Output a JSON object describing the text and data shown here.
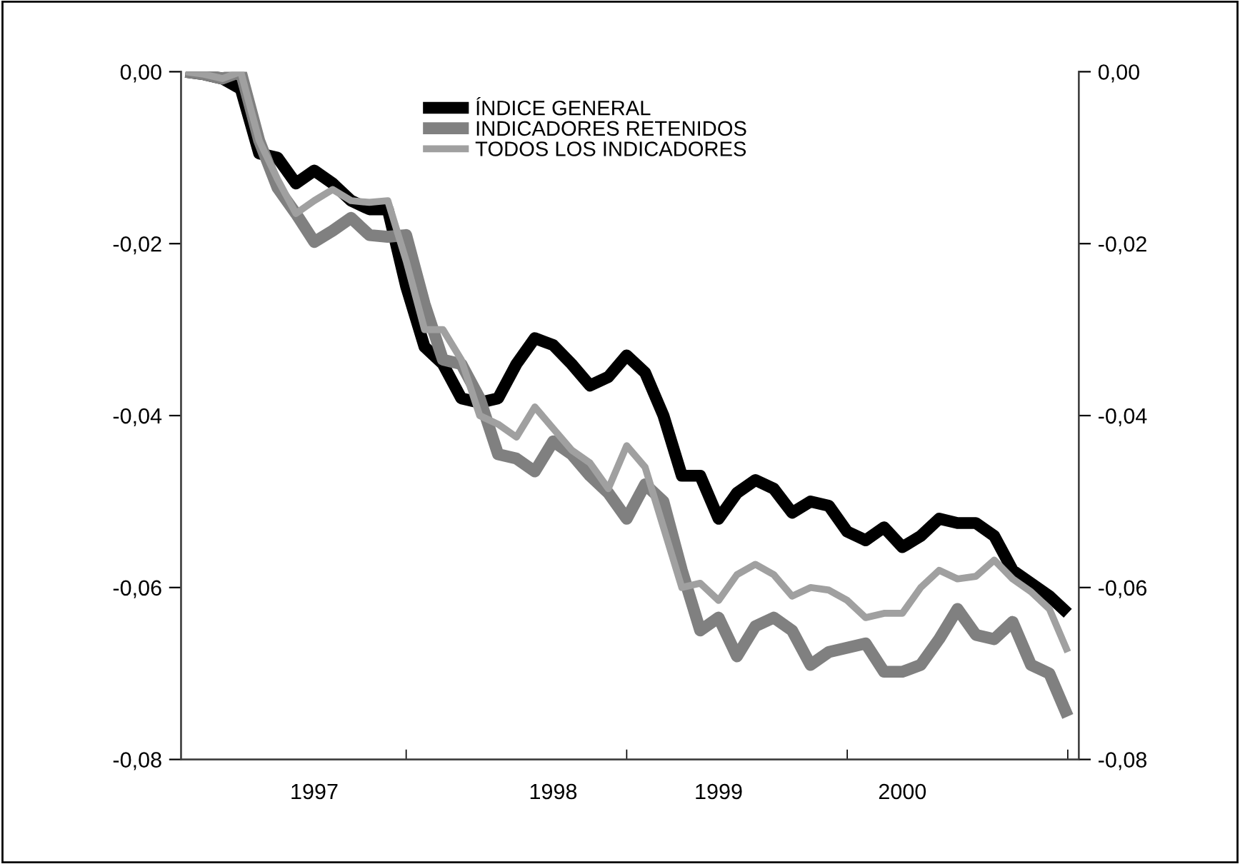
{
  "chart_data": {
    "type": "line",
    "categories": [
      null,
      null,
      null,
      null,
      null,
      null,
      null,
      "1997",
      null,
      null,
      null,
      null,
      null,
      null,
      null,
      null,
      null,
      null,
      null,
      null,
      "1998",
      null,
      null,
      null,
      null,
      null,
      null,
      null,
      null,
      "1999",
      null,
      null,
      null,
      null,
      null,
      null,
      null,
      null,
      null,
      "2000",
      null,
      null,
      null,
      null,
      null,
      null,
      null,
      null,
      null
    ],
    "series": [
      {
        "name": "ÍNDICE GENERAL",
        "color": "#000000",
        "values": [
          0,
          -0.0003,
          -0.0008,
          -0.002,
          -0.0095,
          -0.01,
          -0.013,
          -0.0115,
          -0.013,
          -0.015,
          -0.016,
          -0.016,
          -0.025,
          -0.032,
          -0.034,
          -0.038,
          -0.0385,
          -0.038,
          -0.034,
          -0.031,
          -0.0318,
          -0.034,
          -0.0365,
          -0.0355,
          -0.033,
          -0.035,
          -0.04,
          -0.047,
          -0.047,
          -0.052,
          -0.049,
          -0.0475,
          -0.0485,
          -0.0513,
          -0.05,
          -0.0505,
          -0.0535,
          -0.0545,
          -0.053,
          -0.0553,
          -0.054,
          -0.052,
          -0.0525,
          -0.0525,
          -0.054,
          -0.058,
          -0.0595,
          -0.061,
          -0.063
        ]
      },
      {
        "name": "INDICADORES RETENIDOS",
        "color": "#808080",
        "values": [
          0,
          -0.0003,
          -0.0008,
          0,
          -0.008,
          -0.0135,
          -0.0165,
          -0.0198,
          -0.0185,
          -0.017,
          -0.019,
          -0.0192,
          -0.019,
          -0.027,
          -0.0335,
          -0.034,
          -0.038,
          -0.0445,
          -0.045,
          -0.0465,
          -0.043,
          -0.0445,
          -0.047,
          -0.049,
          -0.052,
          -0.048,
          -0.05,
          -0.058,
          -0.065,
          -0.0635,
          -0.068,
          -0.0645,
          -0.0635,
          -0.065,
          -0.069,
          -0.0675,
          -0.067,
          -0.0665,
          -0.0698,
          -0.0698,
          -0.069,
          -0.066,
          -0.0625,
          -0.0655,
          -0.066,
          -0.064,
          -0.069,
          -0.07,
          -0.075
        ]
      },
      {
        "name": "TODOS LOS INDICADORES",
        "color": "#a0a0a0",
        "values": [
          0,
          -0.0003,
          -0.0008,
          0,
          -0.008,
          -0.0125,
          -0.0165,
          -0.015,
          -0.0137,
          -0.015,
          -0.0152,
          -0.015,
          -0.022,
          -0.03,
          -0.03,
          -0.0335,
          -0.04,
          -0.041,
          -0.0425,
          -0.039,
          -0.0415,
          -0.044,
          -0.0455,
          -0.0485,
          -0.0435,
          -0.046,
          -0.053,
          -0.06,
          -0.0595,
          -0.0615,
          -0.0585,
          -0.0573,
          -0.0585,
          -0.061,
          -0.06,
          -0.0603,
          -0.0615,
          -0.0635,
          -0.063,
          -0.063,
          -0.06,
          -0.058,
          -0.059,
          -0.0587,
          -0.0568,
          -0.059,
          -0.0605,
          -0.0625,
          -0.0675
        ]
      }
    ],
    "ylim": [
      -0.08,
      0
    ],
    "yticks": [
      {
        "value": -0.08,
        "label": "-0,08"
      },
      {
        "value": -0.06,
        "label": "-0,06"
      },
      {
        "value": -0.04,
        "label": "-0,04"
      },
      {
        "value": -0.02,
        "label": "-0,02"
      },
      {
        "value": 0,
        "label": "0,00"
      }
    ],
    "y2lim": [
      -0.08,
      0
    ],
    "y2ticks": [
      {
        "value": -0.08,
        "label": "-0,08"
      },
      {
        "value": -0.06,
        "label": "-0,06"
      },
      {
        "value": -0.04,
        "label": "-0,04"
      },
      {
        "value": -0.02,
        "label": "-0,02"
      },
      {
        "value": 0,
        "label": "0,00"
      }
    ],
    "grid": false,
    "legend": "top",
    "line_style": "solid"
  }
}
